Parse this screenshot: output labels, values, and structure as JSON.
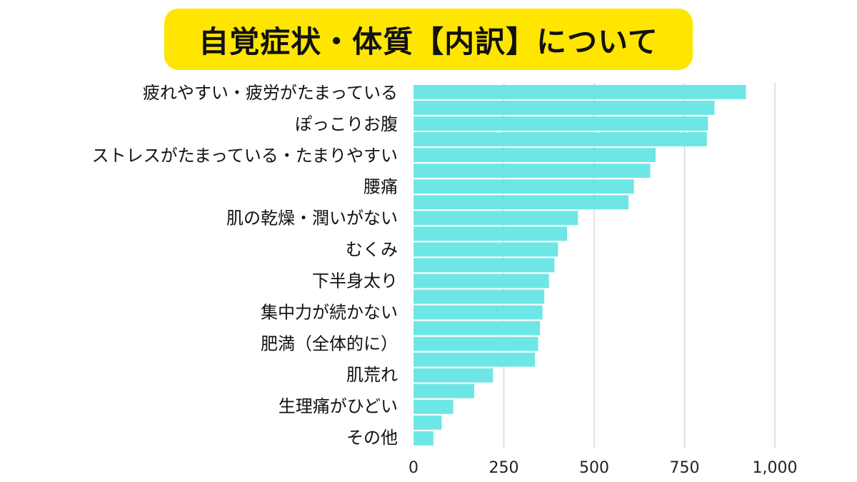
{
  "title": "自覚症状・体質【内訳】について",
  "colors": {
    "title_background": "#FFE600",
    "bar": "#6EE6E6",
    "grid": "#D8D8D8",
    "text": "#111111"
  },
  "chart_data": {
    "type": "bar",
    "orientation": "horizontal",
    "title": "自覚症状・体質【内訳】について",
    "xlabel": "",
    "ylabel": "",
    "xlim": [
      0,
      1000
    ],
    "grid": true,
    "xticks": [
      0,
      250,
      500,
      750,
      1000
    ],
    "xtick_labels": [
      "0",
      "250",
      "500",
      "750",
      "1,000"
    ],
    "labeled_categories": [
      "疲れやすい・疲労がたまっている",
      "ぽっこりお腹",
      "ストレスがたまっている・たまりやすい",
      "腰痛",
      "肌の乾燥・潤いがない",
      "むくみ",
      "下半身太り",
      "集中力が続かない",
      "肥満（全体的に）",
      "肌荒れ",
      "生理痛がひどい",
      "その他"
    ],
    "values": [
      920,
      833,
      815,
      812,
      670,
      655,
      610,
      595,
      455,
      425,
      400,
      390,
      375,
      362,
      357,
      350,
      345,
      336,
      220,
      168,
      110,
      78,
      55
    ]
  }
}
